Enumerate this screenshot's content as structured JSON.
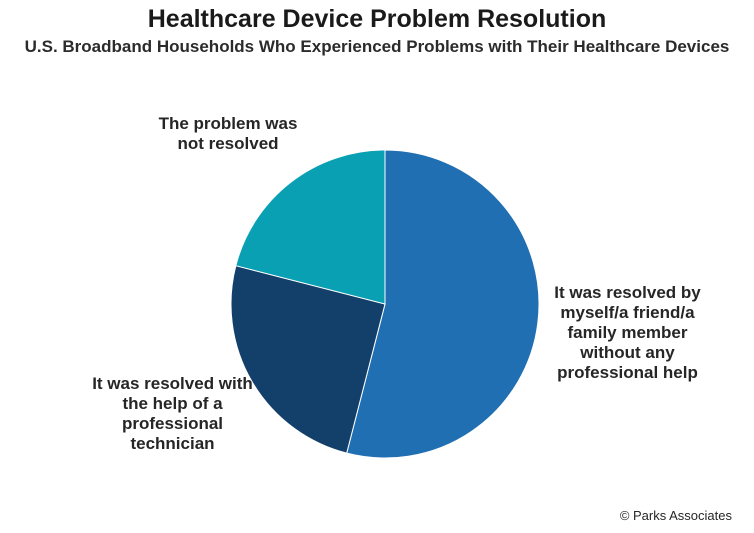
{
  "chart_data": {
    "type": "pie",
    "title": "Healthcare Device Problem Resolution",
    "subtitle": "U.S. Broadband Households Who Experienced Problems with Their Healthcare Devices",
    "slices": [
      {
        "label": "It was resolved by myself/a friend/a family member without any professional help",
        "value": 54,
        "color": "#1f6fb2"
      },
      {
        "label": "It was resolved with the help of a professional technician",
        "value": 25,
        "color": "#13406a"
      },
      {
        "label": "The problem was not resolved",
        "value": 21,
        "color": "#0aa0b3"
      }
    ],
    "start_angle_deg": 0,
    "direction": "clockwise"
  },
  "credit": "© Parks Associates"
}
